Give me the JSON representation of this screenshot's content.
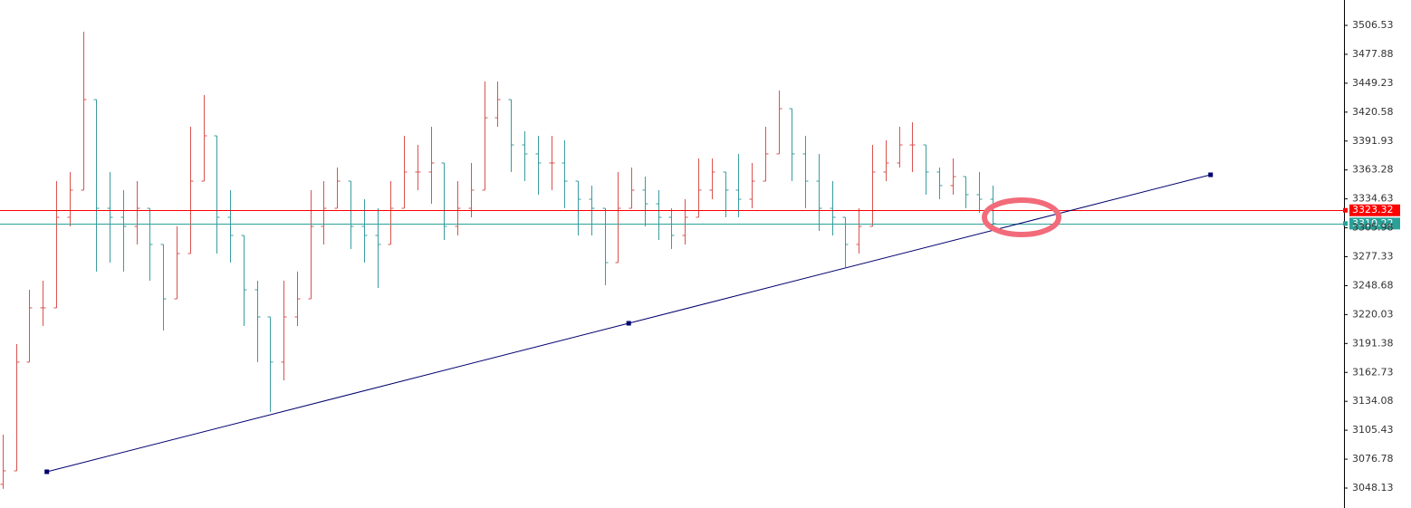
{
  "chart_data": {
    "type": "ohlc",
    "up_color": "#d9534f",
    "down_color": "#3a9ca0",
    "x": [
      0,
      1,
      2,
      3,
      4,
      5,
      6,
      7,
      8,
      9,
      10,
      11,
      12,
      13,
      14,
      15,
      16,
      17,
      18,
      19,
      20,
      21,
      22,
      23,
      24,
      25,
      26,
      27,
      28,
      29,
      30,
      31,
      32,
      33,
      34,
      35,
      36,
      37,
      38,
      39,
      40,
      41,
      42,
      43,
      44,
      45,
      46,
      47,
      48,
      49,
      50,
      51,
      52,
      53,
      54,
      55,
      56,
      57,
      58,
      59,
      60,
      61,
      62,
      63,
      64,
      65,
      66,
      67,
      68,
      69,
      70,
      71,
      72,
      73,
      74
    ],
    "open": [
      3051.8,
      3065.2,
      3172.9,
      3226.7,
      3226.7,
      3316.4,
      3343.3,
      3433.0,
      3325.3,
      3316.4,
      3307.4,
      3325.3,
      3289.5,
      3235.6,
      3280.5,
      3352.2,
      3397.1,
      3316.4,
      3298.4,
      3244.6,
      3217.7,
      3172.9,
      3217.7,
      3235.6,
      3307.4,
      3325.3,
      3352.2,
      3307.4,
      3298.4,
      3289.5,
      3325.3,
      3361.2,
      3361.2,
      3370.2,
      3307.4,
      3325.3,
      3343.3,
      3415.0,
      3433.0,
      3388.1,
      3379.2,
      3370.2,
      3370.2,
      3352.2,
      3334.3,
      3325.3,
      3271.5,
      3325.3,
      3343.3,
      3329.8,
      3316.4,
      3298.4,
      3316.4,
      3343.3,
      3361.2,
      3343.3,
      3334.3,
      3352.2,
      3379.2,
      3424.0,
      3379.2,
      3352.2,
      3325.3,
      3316.4,
      3289.5,
      3307.4,
      3361.2,
      3370.2,
      3388.1,
      3388.1,
      3361.2,
      3347.8,
      3356.7,
      3338.8,
      3334.3
    ],
    "high": [
      3101.1,
      3190.8,
      3244.6,
      3253.6,
      3352.2,
      3361.2,
      3500.2,
      3433.0,
      3361.2,
      3343.3,
      3352.2,
      3325.3,
      3289.5,
      3307.4,
      3406.1,
      3437.5,
      3397.1,
      3343.3,
      3298.4,
      3253.6,
      3217.7,
      3253.6,
      3262.6,
      3343.3,
      3352.2,
      3365.7,
      3352.2,
      3334.3,
      3325.3,
      3352.2,
      3397.1,
      3388.1,
      3406.1,
      3370.2,
      3352.2,
      3370.2,
      3450.9,
      3450.9,
      3433.0,
      3401.6,
      3397.1,
      3397.1,
      3392.6,
      3352.2,
      3347.8,
      3325.3,
      3361.2,
      3365.7,
      3356.7,
      3343.3,
      3325.3,
      3334.3,
      3374.7,
      3374.7,
      3361.2,
      3379.2,
      3370.2,
      3406.1,
      3441.9,
      3424.0,
      3397.1,
      3379.2,
      3352.2,
      3316.4,
      3325.3,
      3388.1,
      3392.6,
      3406.1,
      3410.5,
      3388.1,
      3365.7,
      3374.7,
      3356.7,
      3361.2,
      3347.8
    ],
    "low": [
      3047.3,
      3065.2,
      3172.9,
      3208.7,
      3226.7,
      3307.4,
      3343.3,
      3262.6,
      3271.5,
      3262.6,
      3289.5,
      3253.6,
      3204.2,
      3235.6,
      3280.5,
      3352.2,
      3280.5,
      3271.5,
      3208.7,
      3172.9,
      3123.5,
      3154.9,
      3208.7,
      3235.6,
      3289.5,
      3325.3,
      3285.0,
      3271.5,
      3246.4,
      3289.5,
      3325.3,
      3343.3,
      3329.8,
      3293.9,
      3298.4,
      3316.4,
      3343.3,
      3406.1,
      3361.2,
      3352.2,
      3338.8,
      3343.3,
      3325.3,
      3298.4,
      3298.4,
      3249.1,
      3271.5,
      3325.3,
      3307.4,
      3293.9,
      3285.0,
      3289.5,
      3316.4,
      3334.3,
      3316.4,
      3316.4,
      3325.3,
      3352.2,
      3379.2,
      3352.2,
      3325.3,
      3302.9,
      3298.4,
      3267.0,
      3280.5,
      3307.4,
      3352.2,
      3365.7,
      3361.2,
      3338.8,
      3334.3,
      3338.8,
      3325.3,
      3320.8,
      3306.0
    ],
    "close": [
      3065.2,
      3172.9,
      3226.7,
      3226.7,
      3316.4,
      3343.3,
      3433.0,
      3325.3,
      3316.4,
      3307.4,
      3325.3,
      3289.5,
      3235.6,
      3280.5,
      3352.2,
      3397.1,
      3316.4,
      3298.4,
      3244.6,
      3217.7,
      3172.9,
      3217.7,
      3235.6,
      3307.4,
      3325.3,
      3352.2,
      3307.4,
      3298.4,
      3289.5,
      3325.3,
      3361.2,
      3361.2,
      3370.2,
      3307.4,
      3325.3,
      3343.3,
      3415.0,
      3433.0,
      3388.1,
      3379.2,
      3370.2,
      3370.2,
      3352.2,
      3334.3,
      3325.3,
      3271.5,
      3325.3,
      3343.3,
      3329.8,
      3316.4,
      3298.4,
      3316.4,
      3343.3,
      3361.2,
      3343.3,
      3334.3,
      3352.2,
      3379.2,
      3424.0,
      3379.2,
      3352.2,
      3325.3,
      3316.4,
      3289.5,
      3307.4,
      3361.2,
      3370.2,
      3388.1,
      3388.1,
      3361.2,
      3347.8,
      3356.7,
      3338.8,
      3334.3,
      3310.2
    ],
    "xlim": [
      -0.2,
      100
    ],
    "ylim": [
      3028.4,
      3531.65
    ],
    "yticks": [
      3506.53,
      3477.88,
      3449.23,
      3420.58,
      3391.93,
      3363.28,
      3334.63,
      3305.98,
      3277.33,
      3248.68,
      3220.03,
      3191.38,
      3162.73,
      3134.08,
      3105.43,
      3076.78,
      3048.13
    ],
    "price_lines": [
      {
        "value": 3323.32,
        "color": "#ff0000"
      },
      {
        "value": 3310.22,
        "color": "#2aa198"
      }
    ],
    "trendline": {
      "x": [
        3.3,
        46.8,
        90.3
      ],
      "y": [
        3064.3,
        3211.4,
        3358.5
      ],
      "color": "#00006e"
    }
  }
}
